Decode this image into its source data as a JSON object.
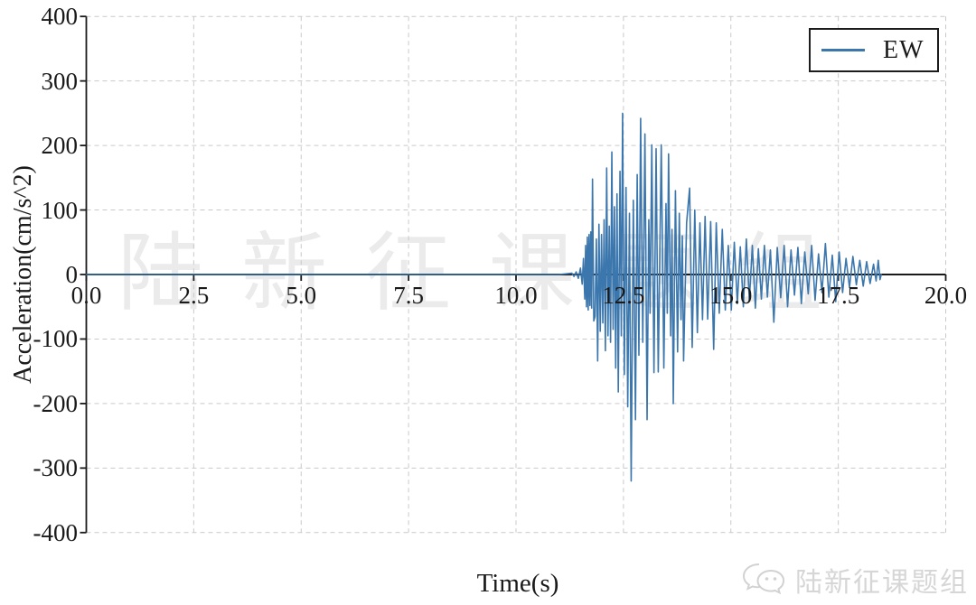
{
  "watermark": {
    "center_text": "陆新征课题组"
  },
  "footer": {
    "logo_text": "陆新征课题组",
    "logo_icon": "wechat-bubbles-icon"
  },
  "chart_data": {
    "type": "line",
    "title": "",
    "xlabel": "Time(s)",
    "ylabel": "Acceleration(cm/s^2)",
    "xlim": [
      0,
      20
    ],
    "ylim": [
      -400,
      400
    ],
    "x_tick_values": [
      0,
      2.5,
      5,
      7.5,
      10,
      12.5,
      15,
      17.5,
      20
    ],
    "x_tick_labels": [
      "0.0",
      "2.5",
      "5.0",
      "7.5",
      "10.0",
      "12.5",
      "15.0",
      "17.5",
      "20.0"
    ],
    "y_tick_values": [
      400,
      300,
      200,
      100,
      0,
      -100,
      -200,
      -300,
      -400
    ],
    "y_tick_labels": [
      "400",
      "300",
      "200",
      "100",
      "0",
      "-100",
      "-200",
      "-300",
      "-400"
    ],
    "grid": {
      "on": true,
      "style": "dashed",
      "color": "#c9c9c9"
    },
    "axis_color": "#1a1a1a",
    "axis_position": "x-axis-at-zero",
    "legend": {
      "position": "top-right",
      "entries": [
        {
          "label": "EW",
          "color": "#3b76ad"
        }
      ]
    },
    "series": [
      {
        "name": "EW",
        "color": "#3b76ad",
        "units": {
          "x": "s",
          "y": "cm/s^2"
        },
        "peak_acceleration": 250,
        "min_acceleration": -320,
        "points": [
          [
            0,
            0
          ],
          [
            11.0,
            0
          ],
          [
            11.3,
            2
          ],
          [
            11.35,
            -3
          ],
          [
            11.4,
            4
          ],
          [
            11.45,
            -6
          ],
          [
            11.5,
            10
          ],
          [
            11.54,
            -15
          ],
          [
            11.57,
            25
          ],
          [
            11.6,
            -38
          ],
          [
            11.62,
            45
          ],
          [
            11.64,
            -50
          ],
          [
            11.66,
            58
          ],
          [
            11.68,
            -55
          ],
          [
            11.7,
            62
          ],
          [
            11.72,
            -48
          ],
          [
            11.74,
            66
          ],
          [
            11.76,
            -52
          ],
          [
            11.78,
            148
          ],
          [
            11.81,
            -72
          ],
          [
            11.84,
            -65
          ],
          [
            11.87,
            55
          ],
          [
            11.9,
            -134
          ],
          [
            11.93,
            78
          ],
          [
            11.96,
            -88
          ],
          [
            11.99,
            62
          ],
          [
            12.02,
            -75
          ],
          [
            12.05,
            85
          ],
          [
            12.08,
            -118
          ],
          [
            12.11,
            165
          ],
          [
            12.14,
            -95
          ],
          [
            12.17,
            75
          ],
          [
            12.2,
            -105
          ],
          [
            12.23,
            190
          ],
          [
            12.26,
            -85
          ],
          [
            12.29,
            105
          ],
          [
            12.32,
            -145
          ],
          [
            12.35,
            125
          ],
          [
            12.38,
            -182
          ],
          [
            12.42,
            160
          ],
          [
            12.45,
            -95
          ],
          [
            12.48,
            250
          ],
          [
            12.52,
            -155
          ],
          [
            12.56,
            135
          ],
          [
            12.6,
            -205
          ],
          [
            12.64,
            95
          ],
          [
            12.68,
            -320
          ],
          [
            12.73,
            115
          ],
          [
            12.78,
            -225
          ],
          [
            12.82,
            155
          ],
          [
            12.86,
            -125
          ],
          [
            12.9,
            242
          ],
          [
            12.95,
            -105
          ],
          [
            13.0,
            218
          ],
          [
            13.05,
            -225
          ],
          [
            13.09,
            85
          ],
          [
            13.12,
            -60
          ],
          [
            13.16,
            201
          ],
          [
            13.21,
            -152
          ],
          [
            13.26,
            195
          ],
          [
            13.31,
            -151
          ],
          [
            13.38,
            201
          ],
          [
            13.44,
            -145
          ],
          [
            13.49,
            110
          ],
          [
            13.52,
            -60
          ],
          [
            13.55,
            187
          ],
          [
            13.6,
            -95
          ],
          [
            13.63,
            70
          ],
          [
            13.66,
            -200
          ],
          [
            13.71,
            130
          ],
          [
            13.76,
            -120
          ],
          [
            13.8,
            95
          ],
          [
            13.84,
            -70
          ],
          [
            13.87,
            60
          ],
          [
            13.9,
            -134
          ],
          [
            13.97,
            80
          ],
          [
            14.04,
            134
          ],
          [
            14.1,
            -113
          ],
          [
            14.16,
            100
          ],
          [
            14.22,
            -90
          ],
          [
            14.28,
            80
          ],
          [
            14.34,
            -70
          ],
          [
            14.4,
            90
          ],
          [
            14.46,
            -69
          ],
          [
            14.53,
            82
          ],
          [
            14.6,
            -116
          ],
          [
            14.66,
            80
          ],
          [
            14.73,
            -60
          ],
          [
            14.8,
            70
          ],
          [
            14.87,
            -55
          ],
          [
            14.94,
            45
          ],
          [
            15.01,
            -55
          ],
          [
            15.08,
            50
          ],
          [
            15.15,
            -45
          ],
          [
            15.22,
            43
          ],
          [
            15.29,
            -50
          ],
          [
            15.36,
            55
          ],
          [
            15.43,
            -40
          ],
          [
            15.5,
            45
          ],
          [
            15.57,
            -52
          ],
          [
            15.64,
            40
          ],
          [
            15.71,
            -38
          ],
          [
            15.78,
            45
          ],
          [
            15.85,
            -35
          ],
          [
            15.92,
            38
          ],
          [
            16.0,
            -74
          ],
          [
            16.08,
            42
          ],
          [
            16.16,
            -36
          ],
          [
            16.24,
            45
          ],
          [
            16.32,
            -50
          ],
          [
            16.4,
            38
          ],
          [
            16.48,
            -32
          ],
          [
            16.56,
            42
          ],
          [
            16.64,
            -45
          ],
          [
            16.72,
            35
          ],
          [
            16.8,
            -30
          ],
          [
            16.88,
            45
          ],
          [
            16.96,
            -40
          ],
          [
            17.04,
            32
          ],
          [
            17.12,
            -28
          ],
          [
            17.2,
            48
          ],
          [
            17.28,
            -35
          ],
          [
            17.36,
            30
          ],
          [
            17.44,
            -42
          ],
          [
            17.52,
            35
          ],
          [
            17.6,
            -28
          ],
          [
            17.68,
            25
          ],
          [
            17.76,
            -20
          ],
          [
            17.84,
            28
          ],
          [
            17.92,
            -16
          ],
          [
            18.0,
            22
          ],
          [
            18.08,
            -18
          ],
          [
            18.16,
            20
          ],
          [
            18.24,
            -14
          ],
          [
            18.32,
            16
          ],
          [
            18.38,
            -10
          ],
          [
            18.43,
            22
          ],
          [
            18.47,
            -8
          ],
          [
            18.5,
            0
          ]
        ]
      }
    ]
  }
}
